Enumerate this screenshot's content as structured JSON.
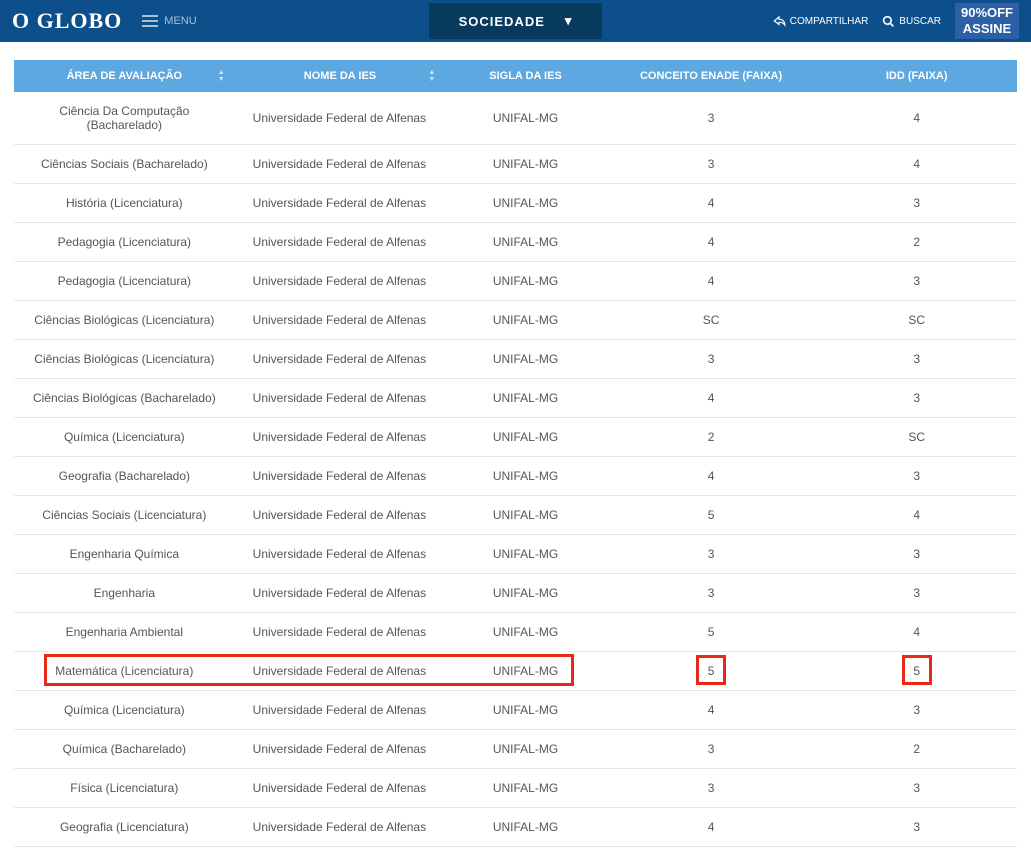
{
  "header": {
    "logo": "O GLOBO",
    "menu_label": "MENU",
    "section": "SOCIEDADE",
    "share_label": "COMPARTILHAR",
    "search_label": "BUSCAR",
    "assine_top": "90%OFF",
    "assine_bottom": "ASSINE"
  },
  "table": {
    "columns": [
      "ÁREA DE AVALIAÇÃO",
      "NOME DA IES",
      "SIGLA DA IES",
      "CONCEITO ENADE (FAIXA)",
      "IDD (FAIXA)"
    ],
    "rows": [
      {
        "area": "Ciência Da Computação (Bacharelado)",
        "nome": "Universidade Federal de Alfenas",
        "sigla": "UNIFAL-MG",
        "enade": "3",
        "idd": "4"
      },
      {
        "area": "Ciências Sociais (Bacharelado)",
        "nome": "Universidade Federal de Alfenas",
        "sigla": "UNIFAL-MG",
        "enade": "3",
        "idd": "4"
      },
      {
        "area": "História (Licenciatura)",
        "nome": "Universidade Federal de Alfenas",
        "sigla": "UNIFAL-MG",
        "enade": "4",
        "idd": "3"
      },
      {
        "area": "Pedagogia (Licenciatura)",
        "nome": "Universidade Federal de Alfenas",
        "sigla": "UNIFAL-MG",
        "enade": "4",
        "idd": "2"
      },
      {
        "area": "Pedagogia (Licenciatura)",
        "nome": "Universidade Federal de Alfenas",
        "sigla": "UNIFAL-MG",
        "enade": "4",
        "idd": "3"
      },
      {
        "area": "Ciências Biológicas (Licenciatura)",
        "nome": "Universidade Federal de Alfenas",
        "sigla": "UNIFAL-MG",
        "enade": "SC",
        "idd": "SC"
      },
      {
        "area": "Ciências Biológicas (Licenciatura)",
        "nome": "Universidade Federal de Alfenas",
        "sigla": "UNIFAL-MG",
        "enade": "3",
        "idd": "3"
      },
      {
        "area": "Ciências Biológicas (Bacharelado)",
        "nome": "Universidade Federal de Alfenas",
        "sigla": "UNIFAL-MG",
        "enade": "4",
        "idd": "3"
      },
      {
        "area": "Química (Licenciatura)",
        "nome": "Universidade Federal de Alfenas",
        "sigla": "UNIFAL-MG",
        "enade": "2",
        "idd": "SC"
      },
      {
        "area": "Geografia (Bacharelado)",
        "nome": "Universidade Federal de Alfenas",
        "sigla": "UNIFAL-MG",
        "enade": "4",
        "idd": "3"
      },
      {
        "area": "Ciências Sociais (Licenciatura)",
        "nome": "Universidade Federal de Alfenas",
        "sigla": "UNIFAL-MG",
        "enade": "5",
        "idd": "4"
      },
      {
        "area": "Engenharia Química",
        "nome": "Universidade Federal de Alfenas",
        "sigla": "UNIFAL-MG",
        "enade": "3",
        "idd": "3"
      },
      {
        "area": "Engenharia",
        "nome": "Universidade Federal de Alfenas",
        "sigla": "UNIFAL-MG",
        "enade": "3",
        "idd": "3"
      },
      {
        "area": "Engenharia Ambiental",
        "nome": "Universidade Federal de Alfenas",
        "sigla": "UNIFAL-MG",
        "enade": "5",
        "idd": "4"
      },
      {
        "area": "Matemática (Licenciatura)",
        "nome": "Universidade Federal de Alfenas",
        "sigla": "UNIFAL-MG",
        "enade": "5",
        "idd": "5",
        "highlight": true
      },
      {
        "area": "Química (Licenciatura)",
        "nome": "Universidade Federal de Alfenas",
        "sigla": "UNIFAL-MG",
        "enade": "4",
        "idd": "3"
      },
      {
        "area": "Química (Bacharelado)",
        "nome": "Universidade Federal de Alfenas",
        "sigla": "UNIFAL-MG",
        "enade": "3",
        "idd": "2"
      },
      {
        "area": "Física (Licenciatura)",
        "nome": "Universidade Federal de Alfenas",
        "sigla": "UNIFAL-MG",
        "enade": "3",
        "idd": "3"
      },
      {
        "area": "Geografia (Licenciatura)",
        "nome": "Universidade Federal de Alfenas",
        "sigla": "UNIFAL-MG",
        "enade": "4",
        "idd": "3"
      }
    ]
  },
  "styling": {
    "header_bg": "#0d4f8b",
    "dropdown_bg": "#083a5e",
    "th_bg": "#5da8e0",
    "th_color": "#ffffff",
    "row_border": "#e8e8e8",
    "text_color": "#555555",
    "highlight_border": "#e8291a",
    "assine_bg": "#2d5fa8"
  }
}
